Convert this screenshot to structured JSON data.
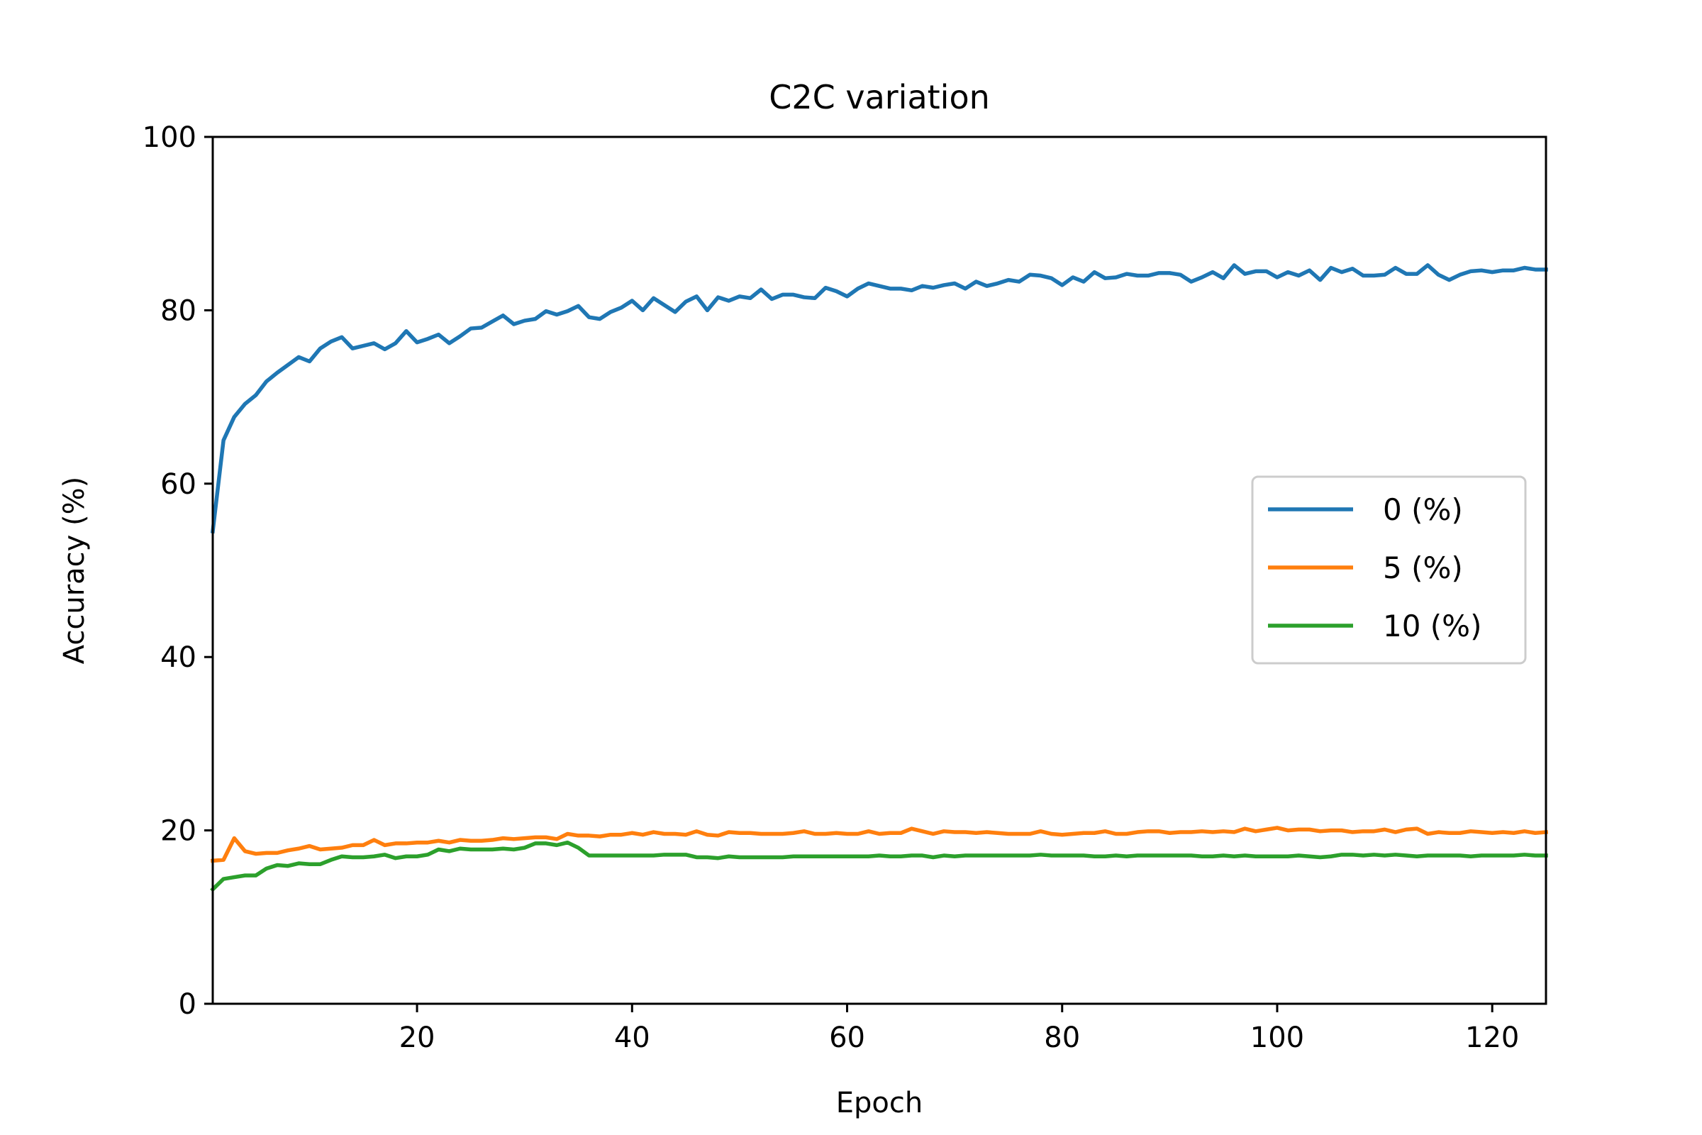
{
  "chart_data": {
    "type": "line",
    "title": "C2C variation",
    "xlabel": "Epoch",
    "ylabel": "Accuracy (%)",
    "xlim": [
      1,
      125
    ],
    "ylim": [
      0,
      100
    ],
    "xticks": [
      20,
      40,
      60,
      80,
      100,
      120
    ],
    "xtick_labels": [
      "20",
      "40",
      "60",
      "80",
      "100",
      "120"
    ],
    "yticks": [
      0,
      20,
      40,
      60,
      80,
      100
    ],
    "ytick_labels": [
      "0",
      "20",
      "40",
      "60",
      "80",
      "100"
    ],
    "grid": false,
    "legend_position": "center-right",
    "x": [
      1,
      2,
      3,
      4,
      5,
      6,
      7,
      8,
      9,
      10,
      11,
      12,
      13,
      14,
      15,
      16,
      17,
      18,
      19,
      20,
      21,
      22,
      23,
      24,
      25,
      26,
      27,
      28,
      29,
      30,
      31,
      32,
      33,
      34,
      35,
      36,
      37,
      38,
      39,
      40,
      41,
      42,
      43,
      44,
      45,
      46,
      47,
      48,
      49,
      50,
      51,
      52,
      53,
      54,
      55,
      56,
      57,
      58,
      59,
      60,
      61,
      62,
      63,
      64,
      65,
      66,
      67,
      68,
      69,
      70,
      71,
      72,
      73,
      74,
      75,
      76,
      77,
      78,
      79,
      80,
      81,
      82,
      83,
      84,
      85,
      86,
      87,
      88,
      89,
      90,
      91,
      92,
      93,
      94,
      95,
      96,
      97,
      98,
      99,
      100,
      101,
      102,
      103,
      104,
      105,
      106,
      107,
      108,
      109,
      110,
      111,
      112,
      113,
      114,
      115,
      116,
      117,
      118,
      119,
      120,
      121,
      122,
      123,
      124,
      125
    ],
    "series": [
      {
        "name": "0 (%)",
        "color": "#1f77b4",
        "values": [
          54.5,
          65.0,
          67.7,
          69.2,
          70.2,
          71.8,
          72.8,
          73.7,
          74.6,
          74.1,
          75.6,
          76.4,
          76.9,
          75.6,
          75.9,
          76.2,
          75.5,
          76.2,
          77.6,
          76.3,
          76.7,
          77.2,
          76.2,
          77.0,
          77.9,
          78.0,
          78.7,
          79.4,
          78.4,
          78.8,
          79.0,
          79.9,
          79.5,
          79.9,
          80.5,
          79.2,
          79.0,
          79.8,
          80.3,
          81.1,
          80.0,
          81.4,
          80.6,
          79.8,
          81.0,
          81.6,
          80.0,
          81.5,
          81.1,
          81.6,
          81.4,
          82.4,
          81.3,
          81.8,
          81.8,
          81.5,
          81.4,
          82.6,
          82.2,
          81.6,
          82.5,
          83.1,
          82.8,
          82.5,
          82.5,
          82.3,
          82.8,
          82.6,
          82.9,
          83.1,
          82.5,
          83.3,
          82.8,
          83.1,
          83.5,
          83.3,
          84.1,
          84.0,
          83.7,
          82.9,
          83.8,
          83.3,
          84.4,
          83.7,
          83.8,
          84.2,
          84.0,
          84.0,
          84.3,
          84.3,
          84.1,
          83.3,
          83.8,
          84.4,
          83.7,
          85.2,
          84.2,
          84.5,
          84.5,
          83.8,
          84.4,
          84.0,
          84.6,
          83.5,
          84.9,
          84.4,
          84.8,
          84.0,
          84.0,
          84.1,
          84.9,
          84.2,
          84.2,
          85.2,
          84.1,
          83.5,
          84.1,
          84.5,
          84.6,
          84.4,
          84.6,
          84.6,
          84.9,
          84.7,
          84.7
        ]
      },
      {
        "name": "5 (%)",
        "color": "#ff7f0e",
        "values": [
          16.5,
          16.6,
          19.1,
          17.6,
          17.3,
          17.4,
          17.4,
          17.7,
          17.9,
          18.2,
          17.8,
          17.9,
          18.0,
          18.3,
          18.3,
          18.9,
          18.3,
          18.5,
          18.5,
          18.6,
          18.6,
          18.8,
          18.6,
          18.9,
          18.8,
          18.8,
          18.9,
          19.1,
          19.0,
          19.1,
          19.2,
          19.2,
          19.0,
          19.6,
          19.4,
          19.4,
          19.3,
          19.5,
          19.5,
          19.7,
          19.5,
          19.8,
          19.6,
          19.6,
          19.5,
          19.9,
          19.5,
          19.4,
          19.8,
          19.7,
          19.7,
          19.6,
          19.6,
          19.6,
          19.7,
          19.9,
          19.6,
          19.6,
          19.7,
          19.6,
          19.6,
          19.9,
          19.6,
          19.7,
          19.7,
          20.2,
          19.9,
          19.6,
          19.9,
          19.8,
          19.8,
          19.7,
          19.8,
          19.7,
          19.6,
          19.6,
          19.6,
          19.9,
          19.6,
          19.5,
          19.6,
          19.7,
          19.7,
          19.9,
          19.6,
          19.6,
          19.8,
          19.9,
          19.9,
          19.7,
          19.8,
          19.8,
          19.9,
          19.8,
          19.9,
          19.8,
          20.2,
          19.9,
          20.1,
          20.3,
          20.0,
          20.1,
          20.1,
          19.9,
          20.0,
          20.0,
          19.8,
          19.9,
          19.9,
          20.1,
          19.8,
          20.1,
          20.2,
          19.6,
          19.8,
          19.7,
          19.7,
          19.9,
          19.8,
          19.7,
          19.8,
          19.7,
          19.9,
          19.7,
          19.8
        ]
      },
      {
        "name": "10 (%)",
        "color": "#2ca02c",
        "values": [
          13.2,
          14.4,
          14.6,
          14.8,
          14.8,
          15.6,
          16.0,
          15.9,
          16.2,
          16.1,
          16.1,
          16.6,
          17.0,
          16.9,
          16.9,
          17.0,
          17.2,
          16.8,
          17.0,
          17.0,
          17.2,
          17.8,
          17.6,
          17.9,
          17.8,
          17.8,
          17.8,
          17.9,
          17.8,
          18.0,
          18.5,
          18.5,
          18.3,
          18.6,
          18.0,
          17.1,
          17.1,
          17.1,
          17.1,
          17.1,
          17.1,
          17.1,
          17.2,
          17.2,
          17.2,
          16.9,
          16.9,
          16.8,
          17.0,
          16.9,
          16.9,
          16.9,
          16.9,
          16.9,
          17.0,
          17.0,
          17.0,
          17.0,
          17.0,
          17.0,
          17.0,
          17.0,
          17.1,
          17.0,
          17.0,
          17.1,
          17.1,
          16.9,
          17.1,
          17.0,
          17.1,
          17.1,
          17.1,
          17.1,
          17.1,
          17.1,
          17.1,
          17.2,
          17.1,
          17.1,
          17.1,
          17.1,
          17.0,
          17.0,
          17.1,
          17.0,
          17.1,
          17.1,
          17.1,
          17.1,
          17.1,
          17.1,
          17.0,
          17.0,
          17.1,
          17.0,
          17.1,
          17.0,
          17.0,
          17.0,
          17.0,
          17.1,
          17.0,
          16.9,
          17.0,
          17.2,
          17.2,
          17.1,
          17.2,
          17.1,
          17.2,
          17.1,
          17.0,
          17.1,
          17.1,
          17.1,
          17.1,
          17.0,
          17.1,
          17.1,
          17.1,
          17.1,
          17.2,
          17.1,
          17.1
        ]
      }
    ]
  }
}
